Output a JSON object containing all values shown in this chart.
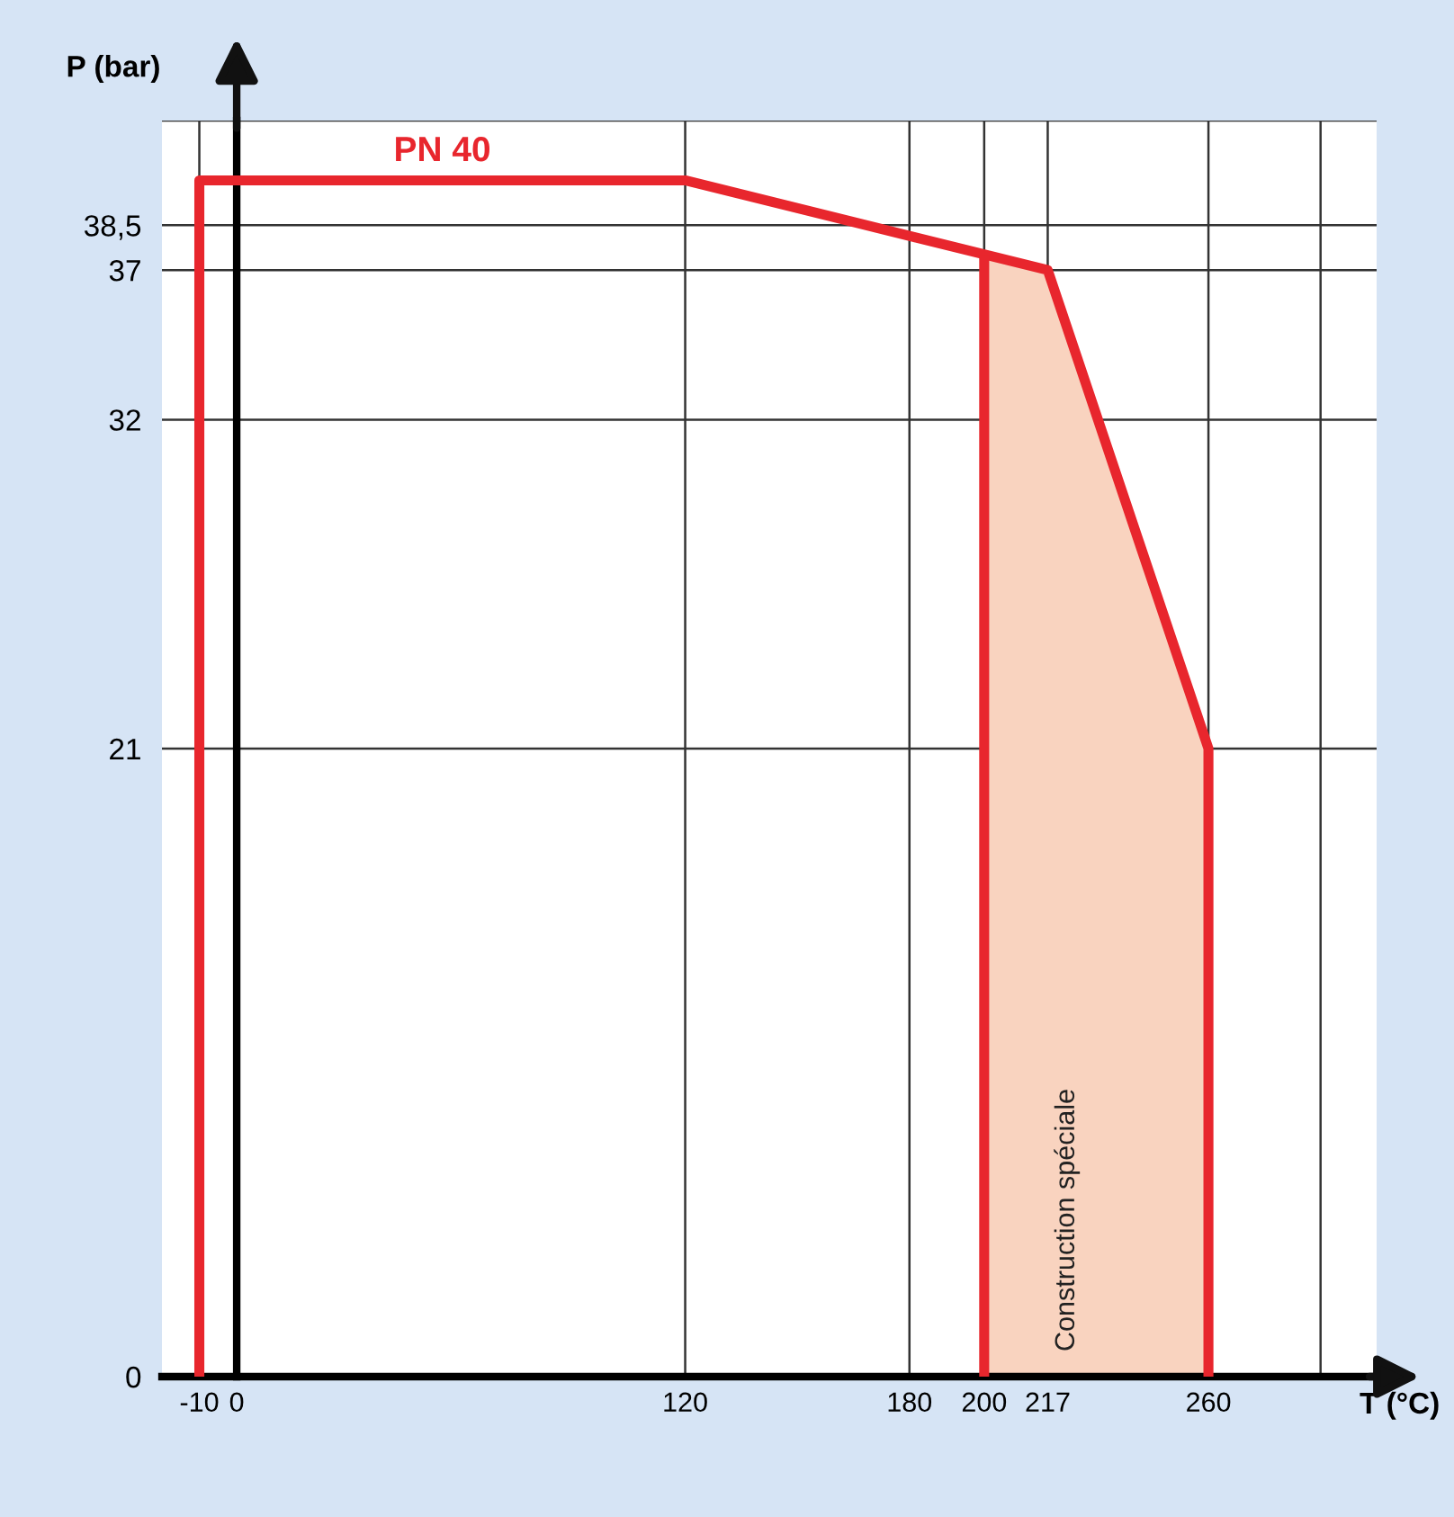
{
  "chart_data": {
    "type": "line",
    "xlabel": "T (°C)",
    "ylabel": "P (bar)",
    "series": [
      {
        "type": "area",
        "color": "#f9d3bf",
        "x": [
          200,
          217,
          260
        ],
        "values": [
          37.5,
          37,
          21
        ]
      },
      {
        "name": "PN 40",
        "color": "#e8262d",
        "x": [
          -10,
          -10,
          120,
          217,
          260,
          260
        ],
        "values": [
          0,
          40,
          40,
          37,
          21,
          0
        ]
      },
      {
        "color": "#e8262d",
        "x": [
          200,
          200
        ],
        "values": [
          0,
          37.5
        ]
      }
    ],
    "xlim": [
      -20,
      305
    ],
    "ylim": [
      0,
      42
    ],
    "xticks": [
      -10,
      0,
      120,
      180,
      200,
      217,
      260,
      {
        "value": 290,
        "label": null
      }
    ],
    "yticks": [
      0,
      21,
      32,
      37,
      {
        "value": 38.5,
        "label": "38,5"
      },
      {
        "value": 42,
        "label": null
      }
    ],
    "grid": true,
    "marker": "none",
    "line_style": "solid",
    "annotations": [
      "Construction spéciale"
    ]
  }
}
